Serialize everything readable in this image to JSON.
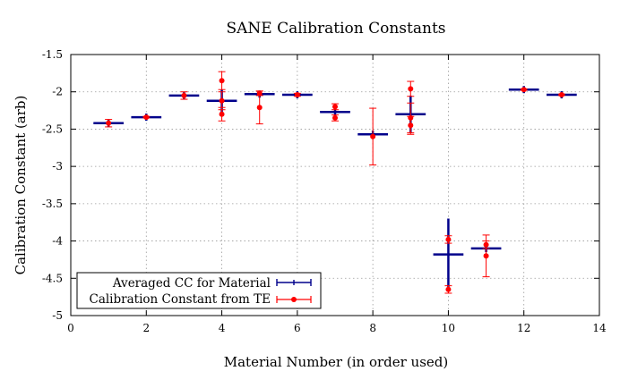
{
  "chart_data": {
    "type": "scatter",
    "title": "SANE Calibration Constants",
    "xlabel": "Material Number (in order used)",
    "ylabel": "Calibration Constant (arb)",
    "xlim": [
      0,
      14
    ],
    "ylim": [
      -5,
      -1.5
    ],
    "xticks": [
      0,
      2,
      4,
      6,
      8,
      10,
      12,
      14
    ],
    "yticks": [
      -5,
      -4.5,
      -4,
      -3.5,
      -3,
      -2.5,
      -2,
      -1.5
    ],
    "xtick_labels": [
      "0",
      "2",
      "4",
      "6",
      "8",
      "10",
      "12",
      "14"
    ],
    "ytick_labels": [
      "-5",
      "-4.5",
      "-4",
      "-3.5",
      "-3",
      "-2.5",
      "-2",
      "-1.5"
    ],
    "grid": true,
    "legend_position": "bottom-left",
    "series": [
      {
        "name": "Averaged CC for Material",
        "color": "#00008b",
        "points": [
          {
            "x": 1,
            "y": -2.42,
            "xerr": 0.4,
            "yerr": 0.0
          },
          {
            "x": 2,
            "y": -2.34,
            "xerr": 0.4,
            "yerr": 0.0
          },
          {
            "x": 3,
            "y": -2.05,
            "xerr": 0.4,
            "yerr": 0.0
          },
          {
            "x": 4,
            "y": -2.12,
            "xerr": 0.4,
            "yerr": 0.15
          },
          {
            "x": 5,
            "y": -2.03,
            "xerr": 0.4,
            "yerr": 0.02
          },
          {
            "x": 6,
            "y": -2.04,
            "xerr": 0.4,
            "yerr": 0.0
          },
          {
            "x": 7,
            "y": -2.27,
            "xerr": 0.4,
            "yerr": 0.1
          },
          {
            "x": 8,
            "y": -2.57,
            "xerr": 0.4,
            "yerr": 0.04
          },
          {
            "x": 9,
            "y": -2.3,
            "xerr": 0.4,
            "yerr": 0.25
          },
          {
            "x": 10,
            "y": -4.18,
            "xerr": 0.4,
            "yerr": 0.48
          },
          {
            "x": 11,
            "y": -4.1,
            "xerr": 0.4,
            "yerr": 0.05
          },
          {
            "x": 12,
            "y": -1.97,
            "xerr": 0.4,
            "yerr": 0.0
          },
          {
            "x": 13,
            "y": -2.04,
            "xerr": 0.4,
            "yerr": 0.0
          }
        ]
      },
      {
        "name": "Calibration Constant from TE",
        "color": "#ff0000",
        "points": [
          {
            "x": 1,
            "y": -2.42,
            "yerr": 0.05
          },
          {
            "x": 2,
            "y": -2.34,
            "yerr": 0.01
          },
          {
            "x": 3,
            "y": -2.05,
            "yerr": 0.05
          },
          {
            "x": 4,
            "y": -1.85,
            "yerr": 0.12
          },
          {
            "x": 4,
            "y": -2.12,
            "yerr": 0.12
          },
          {
            "x": 4,
            "y": -2.3,
            "yerr": 0.09
          },
          {
            "x": 5,
            "y": -2.02,
            "yerr": 0.03
          },
          {
            "x": 5,
            "y": -2.21,
            "yerr": 0.22
          },
          {
            "x": 6,
            "y": -2.04,
            "yerr": 0.02
          },
          {
            "x": 7,
            "y": -2.2,
            "yerr": 0.04
          },
          {
            "x": 7,
            "y": -2.35,
            "yerr": 0.04
          },
          {
            "x": 8,
            "y": -2.6,
            "yerr": 0.38
          },
          {
            "x": 9,
            "y": -1.96,
            "yerr": 0.1
          },
          {
            "x": 9,
            "y": -2.35,
            "yerr": 0.2
          },
          {
            "x": 9,
            "y": -2.45,
            "yerr": 0.12
          },
          {
            "x": 10,
            "y": -3.98,
            "yerr": 0.05
          },
          {
            "x": 10,
            "y": -4.65,
            "yerr": 0.05
          },
          {
            "x": 11,
            "y": -4.2,
            "yerr": 0.28
          },
          {
            "x": 11,
            "y": -4.05,
            "yerr": 0.05
          },
          {
            "x": 12,
            "y": -1.97,
            "yerr": 0.01
          },
          {
            "x": 13,
            "y": -2.04,
            "yerr": 0.01
          }
        ]
      }
    ]
  }
}
